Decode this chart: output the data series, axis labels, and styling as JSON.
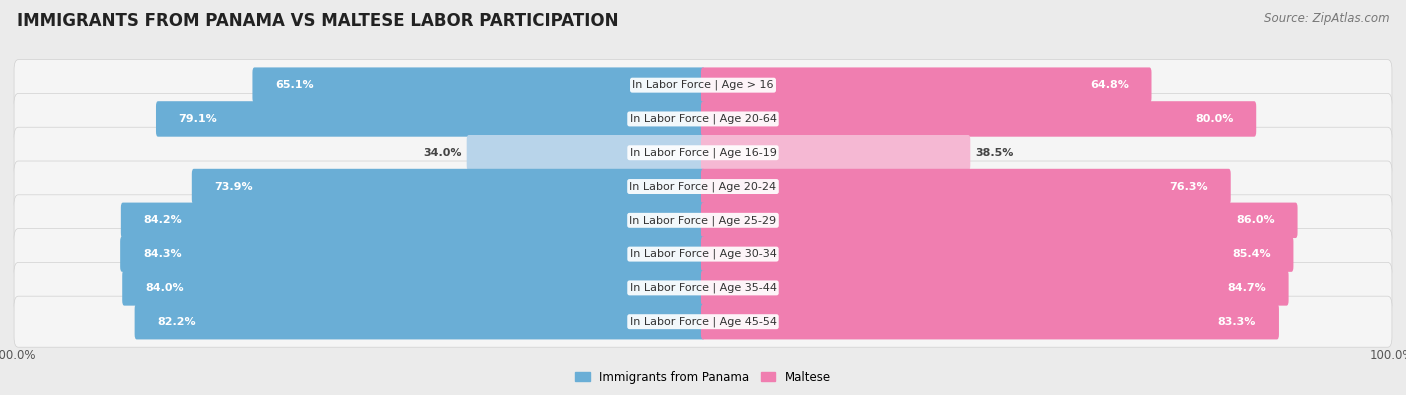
{
  "title": "IMMIGRANTS FROM PANAMA VS MALTESE LABOR PARTICIPATION",
  "source": "Source: ZipAtlas.com",
  "categories": [
    "In Labor Force | Age > 16",
    "In Labor Force | Age 20-64",
    "In Labor Force | Age 16-19",
    "In Labor Force | Age 20-24",
    "In Labor Force | Age 25-29",
    "In Labor Force | Age 30-34",
    "In Labor Force | Age 35-44",
    "In Labor Force | Age 45-54"
  ],
  "panama_values": [
    65.1,
    79.1,
    34.0,
    73.9,
    84.2,
    84.3,
    84.0,
    82.2
  ],
  "maltese_values": [
    64.8,
    80.0,
    38.5,
    76.3,
    86.0,
    85.4,
    84.7,
    83.3
  ],
  "panama_color": "#6aaed6",
  "panama_color_light": "#b8d4ea",
  "maltese_color": "#f07eb0",
  "maltese_color_light": "#f5b8d3",
  "background_color": "#ebebeb",
  "row_bg_light": "#f5f5f5",
  "legend_panama": "Immigrants from Panama",
  "legend_maltese": "Maltese",
  "title_fontsize": 12,
  "label_fontsize": 8,
  "value_fontsize": 8,
  "source_fontsize": 8.5
}
